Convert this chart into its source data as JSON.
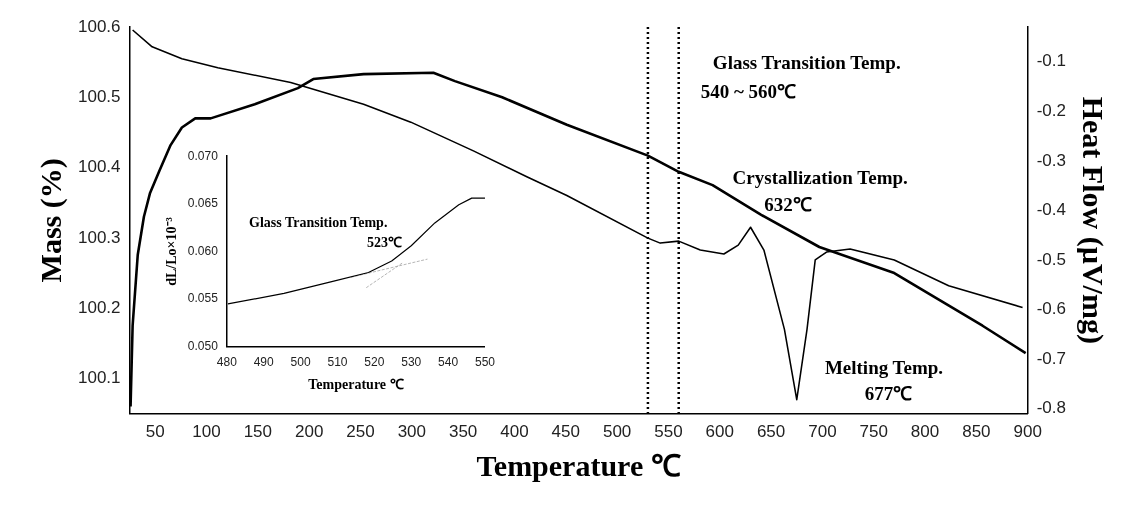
{
  "chart_data": [
    {
      "type": "line",
      "xlabel": "Temperature ℃",
      "ylabel": "Mass (%)",
      "y2label": "Heat Flow (µV/mg)",
      "xlim": [
        25,
        900
      ],
      "xticks": [
        50,
        100,
        150,
        200,
        250,
        300,
        350,
        400,
        450,
        500,
        550,
        600,
        650,
        700,
        750,
        800,
        850,
        900
      ],
      "ylim": [
        100.05,
        100.6
      ],
      "yticks": [
        100.1,
        100.2,
        100.3,
        100.4,
        100.5,
        100.6
      ],
      "y2lim": [
        -0.81,
        -0.03
      ],
      "y2ticks": [
        -0.8,
        -0.7,
        -0.6,
        -0.5,
        -0.4,
        -0.3,
        -0.2,
        -0.1
      ],
      "grid": false,
      "legend": false,
      "marker": "none",
      "series": [
        {
          "color": "#000000",
          "x": [
            26,
            28,
            33,
            39,
            45,
            54,
            65,
            76,
            89,
            104,
            147,
            189,
            204,
            253,
            321,
            342,
            388,
            451,
            530,
            560,
            593,
            640,
            697,
            770,
            856,
            898
          ],
          "values": [
            100.06,
            100.175,
            100.276,
            100.33,
            100.364,
            100.395,
            100.432,
            100.457,
            100.47,
            100.47,
            100.49,
            100.513,
            100.526,
            100.533,
            100.535,
            100.523,
            100.5,
            100.461,
            100.417,
            100.394,
            100.375,
            100.333,
            100.287,
            100.25,
            100.175,
            100.136
          ]
        },
        {
          "color": "#000000",
          "axis": "y2",
          "x": [
            28,
            47,
            76,
            111,
            182,
            253,
            299,
            360,
            412,
            451,
            530,
            542,
            560,
            581,
            604,
            618,
            630,
            643,
            663,
            675,
            685,
            693,
            704,
            727,
            770,
            823,
            895
          ],
          "values": [
            -0.036,
            -0.07,
            -0.094,
            -0.112,
            -0.142,
            -0.186,
            -0.222,
            -0.28,
            -0.332,
            -0.37,
            -0.456,
            -0.466,
            -0.462,
            -0.48,
            -0.488,
            -0.47,
            -0.434,
            -0.48,
            -0.64,
            -0.782,
            -0.64,
            -0.5,
            -0.484,
            -0.478,
            -0.5,
            -0.552,
            -0.596
          ]
        }
      ],
      "ref_lines": [
        {
          "axis": "x",
          "value": 530,
          "color": "#000000",
          "line_style": "dotted"
        },
        {
          "axis": "x",
          "value": 560,
          "color": "#000000",
          "line_style": "dotted"
        }
      ],
      "annotations": [
        "Glass Transition Temp.",
        "540 ~ 560℃",
        "Crystallization Temp.",
        "632℃",
        "Melting Temp.",
        "677℃"
      ]
    },
    {
      "type": "line",
      "xlabel": "Temperature ℃",
      "ylabel": "dL/Lo×10⁻³",
      "xlim": [
        480,
        550
      ],
      "xticks": [
        480,
        490,
        500,
        510,
        520,
        530,
        540,
        550
      ],
      "ylim": [
        0.05,
        0.07
      ],
      "yticks": [
        {
          "value": 0.05,
          "label": "0.050"
        },
        0.055,
        {
          "value": 0.06,
          "label": "0.060"
        },
        0.065,
        {
          "value": 0.07,
          "label": "0.070"
        }
      ],
      "grid": false,
      "legend": false,
      "marker": "none",
      "series": [
        {
          "color": "#000000",
          "x": [
            480.3,
            495.5,
            509,
            518.4,
            524.7,
            530,
            536.4,
            542.9,
            546.4,
            550
          ],
          "values": [
            0.0545,
            0.0556,
            0.0569,
            0.0578,
            0.059,
            0.0606,
            0.063,
            0.0649,
            0.0656,
            0.0656
          ]
        },
        {
          "color": "#999999",
          "line_style": "dashed",
          "x": [
            517.8,
            527.6
          ],
          "values": [
            0.0562,
            0.0588
          ]
        },
        {
          "color": "#999999",
          "line_style": "dashed",
          "x": [
            513.7,
            534.4
          ],
          "values": [
            0.0573,
            0.0592
          ]
        }
      ],
      "annotations": [
        "Glass Transition Temp.",
        "523℃"
      ]
    }
  ]
}
